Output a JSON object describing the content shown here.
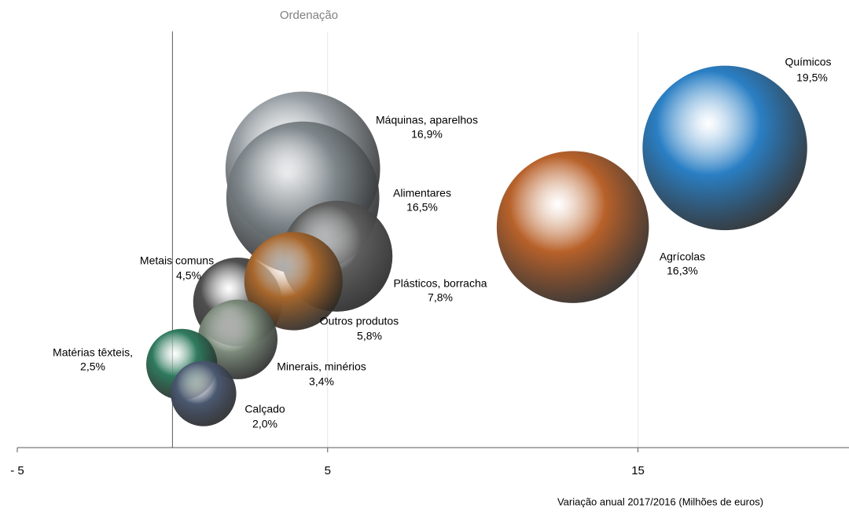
{
  "chart_data": {
    "type": "bubble",
    "title": "Ordenação",
    "x_label": "Variação anual 2017/2016 (Milhões de euros)",
    "names": [
      "Químicos",
      "Agrícolas",
      "Máquinas, aparelhos",
      "Alimentares",
      "Plásticos, borracha",
      "Metais comuns",
      "Outros produtos",
      "Minerais, minérios",
      "Matérias têxteis,",
      "Calçado"
    ],
    "x": [
      17.8,
      12.9,
      4.2,
      4.2,
      5.3,
      2.1,
      3.9,
      2.1,
      0.3,
      1.0
    ],
    "y": [
      7.2,
      5.3,
      6.7,
      6.0,
      4.6,
      3.5,
      4.0,
      2.6,
      2.0,
      1.3
    ],
    "size": [
      19.5,
      16.3,
      16.9,
      16.5,
      7.8,
      4.5,
      5.8,
      3.4,
      2.5,
      2.0
    ],
    "size_labels": [
      "19,5%",
      "16,3%",
      "16,9%",
      "16,5%",
      "7,8%",
      "4,5%",
      "5,8%",
      "3,4%",
      "2,5%",
      "2,0%"
    ],
    "colors": [
      "#2a7fc4",
      "#b8612a",
      "#9aa1a6",
      "#7f878c",
      "#5e5e5e",
      "#4f4f4f",
      "#a8672c",
      "#7b8a7a",
      "#2f7a5e",
      "#4a5870"
    ],
    "xlim": [
      -5,
      21.8
    ],
    "ylim": [
      0,
      10
    ],
    "xticks": [
      {
        "value": -5,
        "label": "- 5"
      },
      5,
      15
    ],
    "grid": true
  }
}
